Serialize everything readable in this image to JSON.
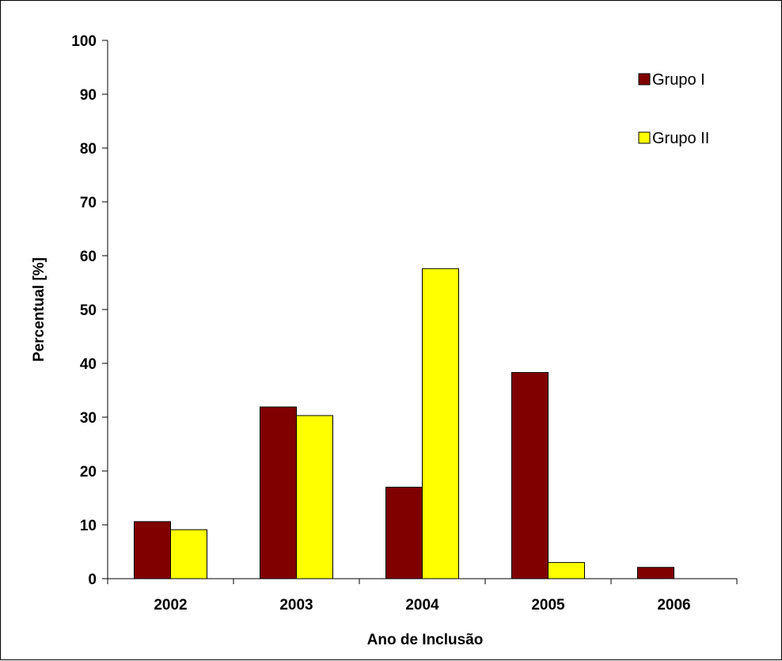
{
  "chart_data": {
    "type": "bar",
    "categories": [
      "2002",
      "2003",
      "2004",
      "2005",
      "2006"
    ],
    "series": [
      {
        "name": "Grupo I",
        "values": [
          10.6,
          31.9,
          17.0,
          38.3,
          2.1
        ],
        "color": "#800000"
      },
      {
        "name": "Grupo II",
        "values": [
          9.1,
          30.3,
          57.6,
          3.0,
          0
        ],
        "color": "#ffff00"
      }
    ],
    "xlabel": "Ano de Inclusão",
    "ylabel": "Percentual [%]",
    "ylim": [
      0,
      100
    ],
    "yticks": [
      "0",
      "10",
      "20",
      "30",
      "40",
      "50",
      "60",
      "70",
      "80",
      "90",
      "100"
    ],
    "grid": false,
    "legend_position": "top-right"
  }
}
